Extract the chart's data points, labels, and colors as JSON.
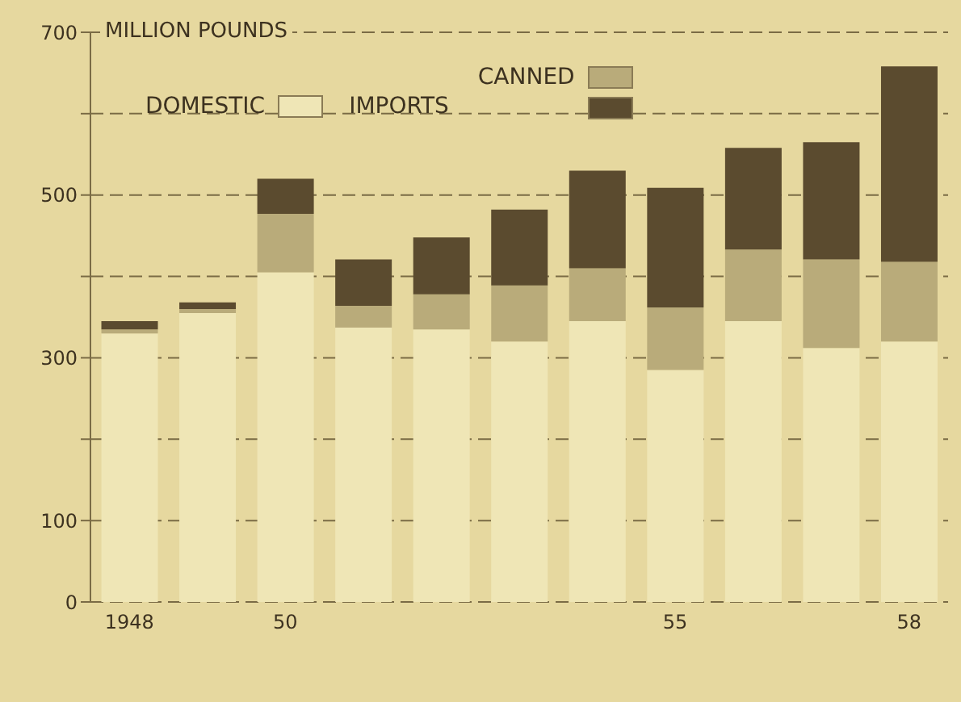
{
  "chart_data": {
    "type": "bar",
    "stacked": true,
    "ylabel": "MILLION POUNDS",
    "legend_title": "IMPORTS",
    "categories": [
      "1948",
      null,
      "50",
      null,
      null,
      null,
      null,
      "55",
      null,
      null,
      "58"
    ],
    "series": [
      {
        "name": "DOMESTIC",
        "color": "#efe6b6",
        "values": [
          330,
          355,
          405,
          337,
          335,
          320,
          345,
          285,
          345,
          312,
          320
        ]
      },
      {
        "name": "CANNED",
        "color": "#b9ab7a",
        "values": [
          5,
          5,
          72,
          27,
          43,
          69,
          65,
          77,
          88,
          109,
          98
        ]
      },
      {
        "color": "#5b4b2f",
        "values": [
          10,
          8,
          43,
          57,
          70,
          93,
          120,
          147,
          125,
          144,
          240
        ]
      }
    ],
    "ylim": [
      0,
      700
    ],
    "yticks": [
      0,
      100,
      {
        "value": 200,
        "label": null
      },
      300,
      {
        "value": 400,
        "label": null
      },
      500,
      {
        "value": 600,
        "label": null
      },
      700
    ],
    "grid": "y",
    "legend": "top left"
  }
}
